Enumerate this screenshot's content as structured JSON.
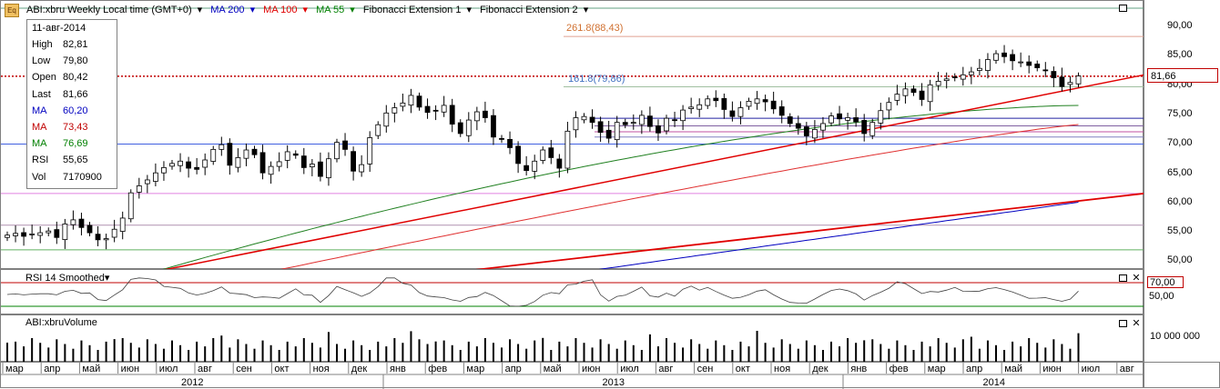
{
  "header": {
    "icon_label": "Eq",
    "symbol": "ABI:xbru Weekly Local time (GMT+0)",
    "ma200": "MA 200",
    "ma100": "MA 100",
    "ma55": "MA 55",
    "fib1": "Fibonacci Extension 1",
    "fib2": "Fibonacci Extension 2"
  },
  "infobox": {
    "date": "11-авг-2014",
    "rows": [
      {
        "k": "High",
        "v": "82,81",
        "color": "#000000"
      },
      {
        "k": "Low",
        "v": "79,80",
        "color": "#000000"
      },
      {
        "k": "Open",
        "v": "80,42",
        "color": "#000000"
      },
      {
        "k": "Last",
        "v": "81,66",
        "color": "#000000"
      },
      {
        "k": "MA",
        "v": "60,20",
        "color": "#0000c0"
      },
      {
        "k": "MA",
        "v": "73,43",
        "color": "#c00000"
      },
      {
        "k": "MA",
        "v": "76,69",
        "color": "#008000"
      },
      {
        "k": "RSI",
        "v": "55,65",
        "color": "#000000"
      },
      {
        "k": "Vol",
        "v": "7170900",
        "color": "#000000"
      }
    ]
  },
  "fib_labels": {
    "f2618": "261.8(88,43)",
    "f1618": "161.8(79,86)"
  },
  "price_axis": {
    "ticks": [
      "90,00",
      "85,00",
      "80,00",
      "75,00",
      "70,00",
      "65,00",
      "60,00",
      "55,00",
      "50,00"
    ],
    "last": "81,66"
  },
  "rsi_panel": {
    "title": "RSI 14 Smoothed",
    "ticks": [
      "70,00",
      "50,00"
    ]
  },
  "vol_panel": {
    "title": "ABI:xbruVolume",
    "ticks": [
      "10 000 000"
    ]
  },
  "time_axis": {
    "months": [
      "мар",
      "апр",
      "май",
      "июн",
      "июл",
      "авг",
      "сен",
      "окт",
      "ноя",
      "дек",
      "янв",
      "фев",
      "мар",
      "апр",
      "май",
      "июн",
      "июл",
      "авг",
      "сен",
      "окт",
      "ноя",
      "дек",
      "янв",
      "фев",
      "мар",
      "апр",
      "май",
      "июн",
      "июл",
      "авг"
    ],
    "years": [
      "2012",
      "2013",
      "2014"
    ]
  },
  "colors": {
    "candle_up": "#ffffff",
    "candle_down": "#000000",
    "ma200": "#0000c0",
    "ma100": "#e03030",
    "ma55": "#208020",
    "trend": "#e00000"
  },
  "chart_data": {
    "type": "candlestick",
    "title": "ABI:xbru Weekly",
    "ylim": [
      48.5,
      93
    ],
    "series_close": [
      54.6,
      54.9,
      54.4,
      54.8,
      55.0,
      55.3,
      54.2,
      56.5,
      57.2,
      55.9,
      55.0,
      53.8,
      54.0,
      55.6,
      57.5,
      61.8,
      63.0,
      64.0,
      65.2,
      66.1,
      66.8,
      67.2,
      66.0,
      65.8,
      67.4,
      69.2,
      70.0,
      66.5,
      67.8,
      69.1,
      68.3,
      65.2,
      66.3,
      67.1,
      68.8,
      68.2,
      66.1,
      66.7,
      64.6,
      67.6,
      70.4,
      69.2,
      65.5,
      66.6,
      71.2,
      73.4,
      75.4,
      76.3,
      77.1,
      78.4,
      76.4,
      75.5,
      75.8,
      76.7,
      73.5,
      71.9,
      74.2,
      75.6,
      74.6,
      71.3,
      70.9,
      69.5,
      66.8,
      65.6,
      67.2,
      69.1,
      67.8,
      66.0,
      72.3,
      74.6,
      74.8,
      73.8,
      72.1,
      71.1,
      73.8,
      73.4,
      73.8,
      75.0,
      73.1,
      72.0,
      74.5,
      74.1,
      75.9,
      76.4,
      76.8,
      77.8,
      77.5,
      76.0,
      74.8,
      76.3,
      77.4,
      77.8,
      77.3,
      76.1,
      75.0,
      73.6,
      72.8,
      71.5,
      72.6,
      73.6,
      74.9,
      74.4,
      74.6,
      73.9,
      71.9,
      73.8,
      75.8,
      77.2,
      78.6,
      79.5,
      78.9,
      77.7,
      80.2,
      80.8,
      81.2,
      81.4,
      81.9,
      82.4,
      83.0,
      84.5,
      85.5,
      85.0,
      84.3,
      84.1,
      83.5,
      83.1,
      82.6,
      81.4,
      79.9,
      80.6,
      81.7
    ],
    "ma200_end": 60.2,
    "ma100_end": 73.43,
    "ma55_end": 76.69,
    "rsi_last": 55.65,
    "volume_last": 7170900,
    "fibonacci": [
      88.43,
      79.86
    ],
    "horizontal_levels": [
      81.66,
      74.5,
      73.2,
      72.2,
      71.3,
      70.1,
      61.7,
      56.3,
      52.1
    ]
  }
}
